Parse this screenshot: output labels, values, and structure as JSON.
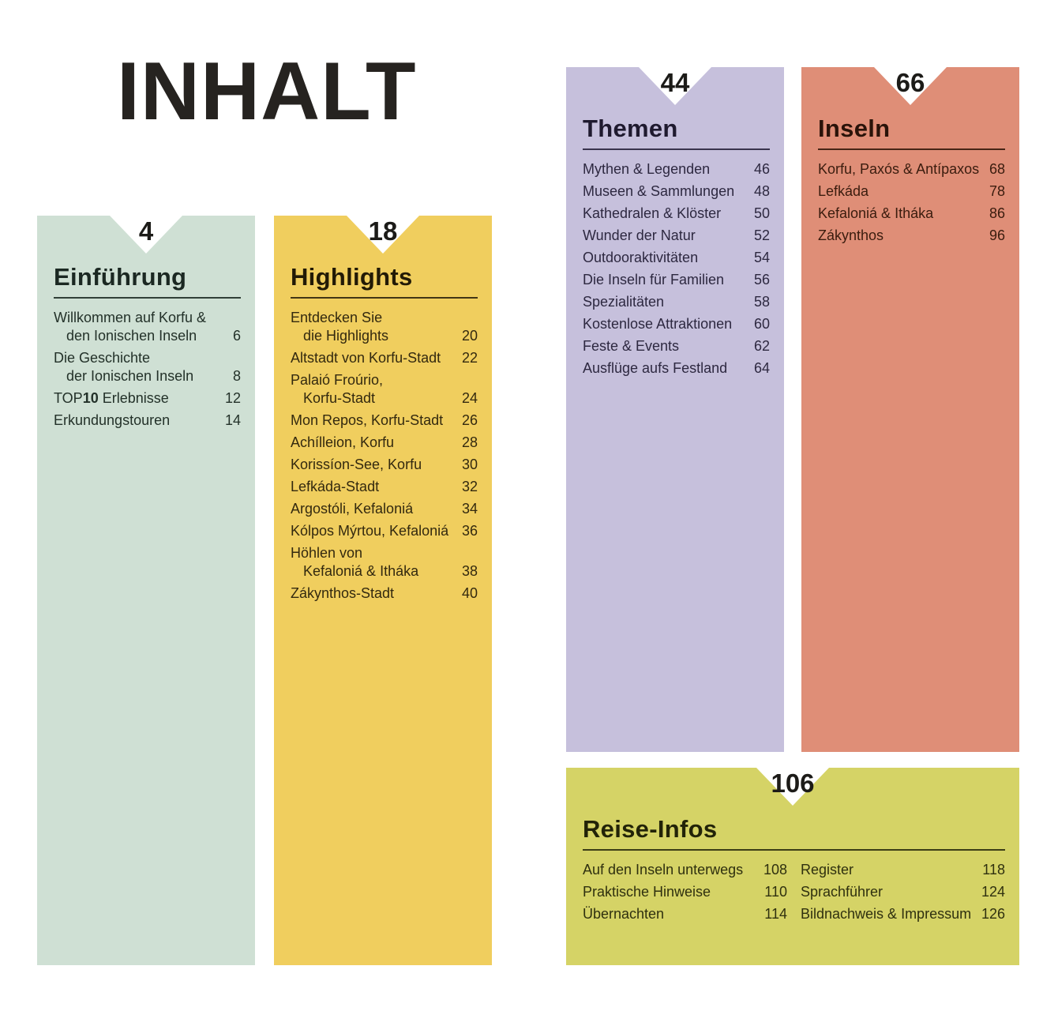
{
  "title": "INHALT",
  "ink_color": "#1c1b18",
  "sections": [
    {
      "id": "einfuehrung",
      "start_page": "4",
      "heading": "Einführung",
      "color": "#cfe0d4",
      "columns": [
        [
          {
            "lines": [
              [
                "Willkommen auf Korfu &"
              ],
              [
                "den Ionischen Inseln"
              ]
            ],
            "page": "6"
          },
          {
            "lines": [
              [
                "Die Geschichte"
              ],
              [
                "der Ionischen Inseln"
              ]
            ],
            "page": "8"
          },
          {
            "lines": [
              [
                "TOP",
                {
                  "t": "10",
                  "bold": true
                },
                " Erlebnisse"
              ]
            ],
            "page": "12"
          },
          {
            "lines": [
              [
                "Erkundungstouren"
              ]
            ],
            "page": "14"
          }
        ]
      ]
    },
    {
      "id": "highlights",
      "start_page": "18",
      "heading": "Highlights",
      "color": "#f0ce5e",
      "columns": [
        [
          {
            "lines": [
              [
                "Entdecken Sie"
              ],
              [
                "die Highlights"
              ]
            ],
            "page": "20"
          },
          {
            "lines": [
              [
                "Altstadt von Korfu-Stadt"
              ]
            ],
            "page": "22"
          },
          {
            "lines": [
              [
                "Palaió Froúrio,"
              ],
              [
                "Korfu-Stadt"
              ]
            ],
            "page": "24"
          },
          {
            "lines": [
              [
                "Mon Repos, Korfu-Stadt"
              ]
            ],
            "page": "26"
          },
          {
            "lines": [
              [
                "Achílleion, Korfu"
              ]
            ],
            "page": "28"
          },
          {
            "lines": [
              [
                "Korissíon-See, Korfu"
              ]
            ],
            "page": "30"
          },
          {
            "lines": [
              [
                "Lefkáda-Stadt"
              ]
            ],
            "page": "32"
          },
          {
            "lines": [
              [
                "Argostóli, Kefaloniá"
              ]
            ],
            "page": "34"
          },
          {
            "lines": [
              [
                "Kólpos Mýrtou, Kefaloniá"
              ]
            ],
            "page": "36"
          },
          {
            "lines": [
              [
                "Höhlen von"
              ],
              [
                "Kefaloniá & Itháka"
              ]
            ],
            "page": "38"
          },
          {
            "lines": [
              [
                "Zákynthos-Stadt"
              ]
            ],
            "page": "40"
          }
        ]
      ]
    },
    {
      "id": "themen",
      "start_page": "44",
      "heading": "Themen",
      "color": "#c6c0dc",
      "columns": [
        [
          {
            "lines": [
              [
                "Mythen & Legenden"
              ]
            ],
            "page": "46"
          },
          {
            "lines": [
              [
                "Museen & Sammlungen"
              ]
            ],
            "page": "48"
          },
          {
            "lines": [
              [
                "Kathedralen & Klöster"
              ]
            ],
            "page": "50"
          },
          {
            "lines": [
              [
                "Wunder der Natur"
              ]
            ],
            "page": "52"
          },
          {
            "lines": [
              [
                "Outdooraktivitäten"
              ]
            ],
            "page": "54"
          },
          {
            "lines": [
              [
                "Die Inseln für Familien"
              ]
            ],
            "page": "56"
          },
          {
            "lines": [
              [
                "Spezialitäten"
              ]
            ],
            "page": "58"
          },
          {
            "lines": [
              [
                "Kostenlose Attraktionen"
              ]
            ],
            "page": "60"
          },
          {
            "lines": [
              [
                "Feste & Events"
              ]
            ],
            "page": "62"
          },
          {
            "lines": [
              [
                "Ausflüge aufs Festland"
              ]
            ],
            "page": "64"
          }
        ]
      ]
    },
    {
      "id": "inseln",
      "start_page": "66",
      "heading": "Inseln",
      "color": "#df8e77",
      "columns": [
        [
          {
            "lines": [
              [
                "Korfu, Paxós & Antípaxos"
              ]
            ],
            "page": "68"
          },
          {
            "lines": [
              [
                "Lefkáda"
              ]
            ],
            "page": "78"
          },
          {
            "lines": [
              [
                "Kefaloniá & Itháka"
              ]
            ],
            "page": "86"
          },
          {
            "lines": [
              [
                "Zákynthos"
              ]
            ],
            "page": "96"
          }
        ]
      ]
    },
    {
      "id": "reise-infos",
      "start_page": "106",
      "heading": "Reise-Infos",
      "color": "#d5d366",
      "columns": [
        [
          {
            "lines": [
              [
                "Auf den Inseln unterwegs"
              ]
            ],
            "page": "108"
          },
          {
            "lines": [
              [
                "Praktische Hinweise"
              ]
            ],
            "page": "110"
          },
          {
            "lines": [
              [
                "Übernachten"
              ]
            ],
            "page": "114"
          }
        ],
        [
          {
            "lines": [
              [
                "Register"
              ]
            ],
            "page": "118"
          },
          {
            "lines": [
              [
                "Sprachführer"
              ]
            ],
            "page": "124"
          },
          {
            "lines": [
              [
                "Bildnachweis & Impressum"
              ]
            ],
            "page": "126"
          }
        ]
      ]
    }
  ]
}
